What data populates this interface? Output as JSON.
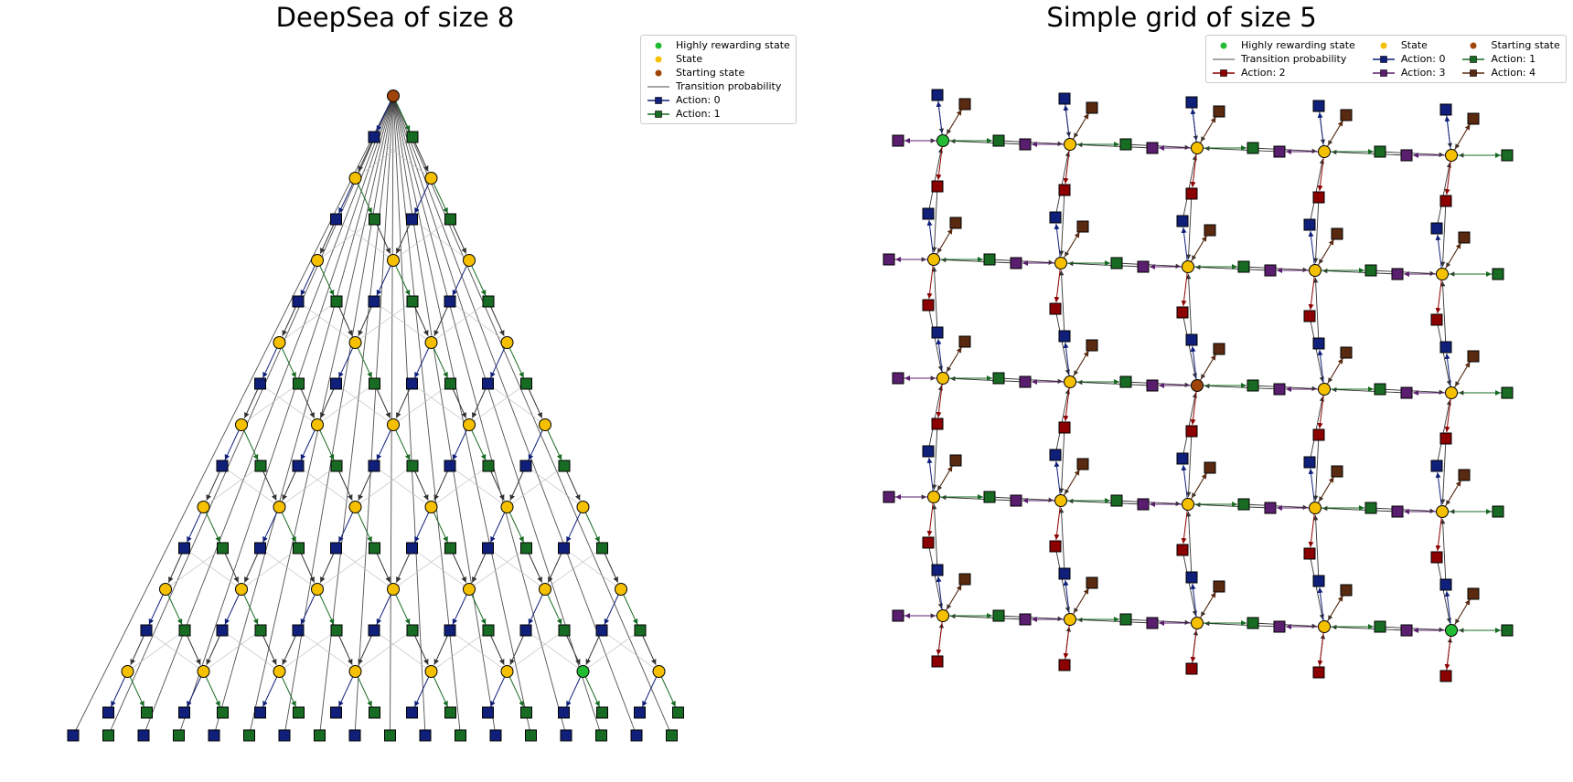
{
  "left": {
    "title": "DeepSea of size 8",
    "legend": [
      {
        "label": "Highly rewarding state",
        "kind": "dot",
        "color": "#22bb33"
      },
      {
        "label": "State",
        "kind": "dot",
        "color": "#f5c000"
      },
      {
        "label": "Starting state",
        "kind": "dot",
        "color": "#a0440a"
      },
      {
        "label": "Transition probability",
        "kind": "line",
        "color": "#888888"
      },
      {
        "label": "Action: 0",
        "kind": "square",
        "color": "#0f1f7a"
      },
      {
        "label": "Action: 1",
        "kind": "square",
        "color": "#176b22"
      }
    ]
  },
  "right": {
    "title": "Simple grid of size 5",
    "legend": [
      {
        "label": "Highly rewarding state",
        "kind": "dot",
        "color": "#22bb33"
      },
      {
        "label": "State",
        "kind": "dot",
        "color": "#f5c000"
      },
      {
        "label": "Starting state",
        "kind": "dot",
        "color": "#a0440a"
      },
      {
        "label": "Transition probability",
        "kind": "line",
        "color": "#888888"
      },
      {
        "label": "Action: 0",
        "kind": "square",
        "color": "#0f1f7a"
      },
      {
        "label": "Action: 1",
        "kind": "square",
        "color": "#176b22"
      },
      {
        "label": "Action: 2",
        "kind": "square",
        "color": "#8b0000"
      },
      {
        "label": "Action: 3",
        "kind": "square",
        "color": "#5a1e6e"
      },
      {
        "label": "Action: 4",
        "kind": "square",
        "color": "#5a2a10"
      }
    ]
  },
  "colors": {
    "state": "#f5c000",
    "start": "#a0440a",
    "goal": "#22bb33",
    "action0": "#0f1f7a",
    "action1": "#176b22",
    "action2": "#8b0000",
    "action3": "#5a1e6e",
    "action4": "#5a2a10",
    "transition": "#444444"
  }
}
